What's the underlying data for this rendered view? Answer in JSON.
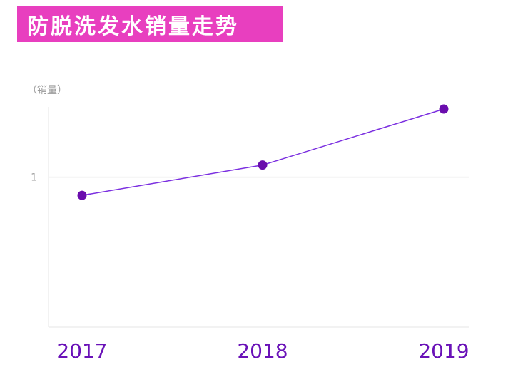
{
  "title": "防脱洗发水销量走势",
  "colors": {
    "banner": "#e83fbf",
    "line": "#7b2fe0",
    "point": "#6a0dad",
    "axis_text": "#6a12b8"
  },
  "chart_data": {
    "type": "line",
    "title": "防脱洗发水销量走势",
    "ylabel": "（销量）",
    "xlabel": "",
    "categories": [
      "2017",
      "2018",
      "2019"
    ],
    "values": [
      0.76,
      1.16,
      1.9
    ],
    "yticks": [
      1
    ],
    "ylim": [
      -0.98,
      1.9
    ],
    "grid": "horizontal at y=1",
    "legend": "none"
  }
}
